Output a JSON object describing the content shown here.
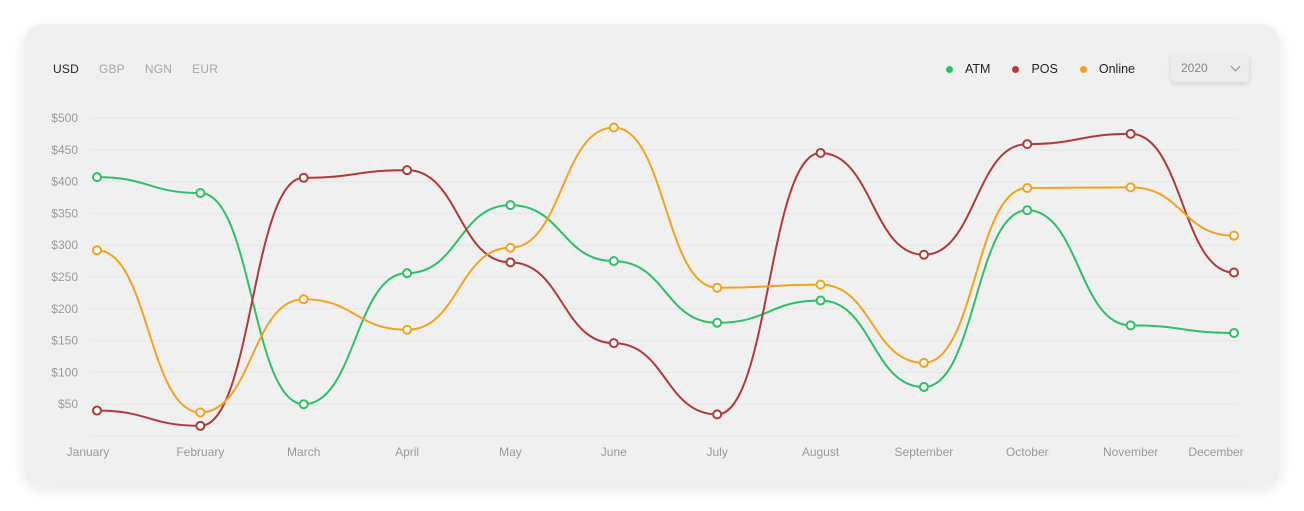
{
  "currency_tabs": [
    {
      "label": "USD",
      "active": true
    },
    {
      "label": "GBP",
      "active": false
    },
    {
      "label": "NGN",
      "active": false
    },
    {
      "label": "EUR",
      "active": false
    }
  ],
  "year_select": {
    "value": "2020"
  },
  "colors": {
    "ATM": "#2ec067",
    "POS": "#b23a3a",
    "Online": "#f5a31f",
    "grid": "#e6e6e6"
  },
  "chart_data": {
    "type": "line",
    "title": "",
    "xlabel": "",
    "ylabel": "",
    "categories": [
      "January",
      "February",
      "March",
      "April",
      "May",
      "June",
      "July",
      "August",
      "September",
      "October",
      "November",
      "December"
    ],
    "yticks": [
      "$50",
      "$100",
      "$150",
      "$200",
      "$250",
      "$300",
      "$350",
      "$400",
      "$450",
      "$500"
    ],
    "ylim": [
      0,
      500
    ],
    "grid": true,
    "legend_position": "top-right",
    "series": [
      {
        "name": "ATM",
        "values": [
          407,
          382,
          50,
          256,
          363,
          275,
          178,
          213,
          77,
          355,
          174,
          162
        ]
      },
      {
        "name": "POS",
        "values": [
          40,
          16,
          406,
          418,
          273,
          146,
          34,
          445,
          285,
          459,
          475,
          257
        ]
      },
      {
        "name": "Online",
        "values": [
          292,
          37,
          215,
          167,
          296,
          485,
          233,
          238,
          115,
          390,
          391,
          315
        ]
      }
    ]
  }
}
